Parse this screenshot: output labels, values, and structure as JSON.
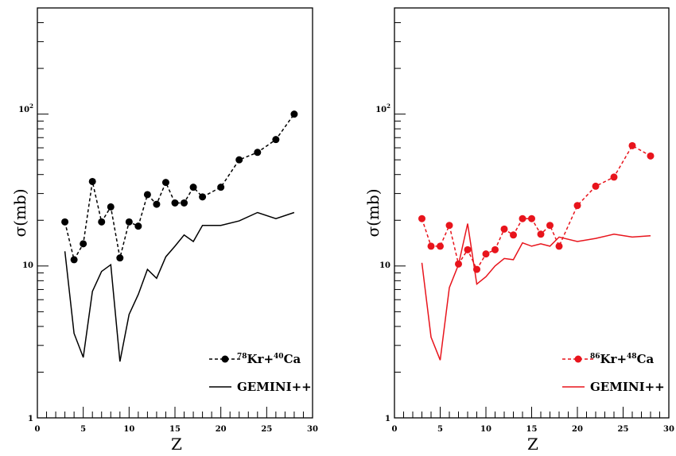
{
  "colors": {
    "black": "#000000",
    "red": "#e8141c",
    "frame": "#000000"
  },
  "chart_data": [
    {
      "type": "line",
      "title": "",
      "xlabel": "Z",
      "ylabel": "σ(mb)",
      "xlim": [
        0,
        30
      ],
      "ylim": [
        1,
        500
      ],
      "yscale": "log",
      "x_ticks": [
        "0",
        "5",
        "10",
        "15",
        "20",
        "25",
        "30"
      ],
      "y_ticks": [
        {
          "value": 1,
          "label": "1"
        },
        {
          "value": 10,
          "label": "10"
        },
        {
          "value": 100,
          "label": "10²"
        }
      ],
      "legend": {
        "position": "bottom-right"
      },
      "series": [
        {
          "name": "⁷⁸Kr+⁴⁰Ca",
          "label_parts": {
            "mass1": "78",
            "el1": "Kr+",
            "mass2": "40",
            "el2": "Ca"
          },
          "style": "dashed-markers",
          "color": "#000000",
          "points": [
            [
              3,
              19.5
            ],
            [
              4,
              11
            ],
            [
              5,
              14
            ],
            [
              6,
              36
            ],
            [
              7,
              19.5
            ],
            [
              8,
              24.5
            ],
            [
              9,
              11.3
            ],
            [
              10,
              19.5
            ],
            [
              11,
              18.3
            ],
            [
              12,
              29.5
            ],
            [
              13,
              25.5
            ],
            [
              14,
              35.5
            ],
            [
              15,
              26
            ],
            [
              16,
              26
            ],
            [
              17,
              33
            ],
            [
              18,
              28.5
            ],
            [
              20,
              33
            ],
            [
              22,
              50
            ],
            [
              24,
              56
            ],
            [
              26,
              68
            ],
            [
              28,
              100
            ]
          ]
        },
        {
          "name": "GEMINI++",
          "style": "solid",
          "color": "#000000",
          "points": [
            [
              3,
              12.5
            ],
            [
              4,
              3.6
            ],
            [
              5,
              2.5
            ],
            [
              6,
              6.8
            ],
            [
              7,
              9.2
            ],
            [
              8,
              10.2
            ],
            [
              9,
              2.35
            ],
            [
              10,
              4.8
            ],
            [
              11,
              6.5
            ],
            [
              12,
              9.5
            ],
            [
              13,
              8.3
            ],
            [
              14,
              11.5
            ],
            [
              15,
              13.5
            ],
            [
              16,
              16
            ],
            [
              17,
              14.5
            ],
            [
              18,
              18.5
            ],
            [
              20,
              18.5
            ],
            [
              22,
              19.8
            ],
            [
              24,
              22.5
            ],
            [
              26,
              20.5
            ],
            [
              28,
              22.5
            ]
          ]
        }
      ]
    },
    {
      "type": "line",
      "title": "",
      "xlabel": "Z",
      "ylabel": "σ(mb)",
      "xlim": [
        0,
        30
      ],
      "ylim": [
        1,
        500
      ],
      "yscale": "log",
      "x_ticks": [
        "0",
        "5",
        "10",
        "15",
        "20",
        "25",
        "30"
      ],
      "y_ticks": [
        {
          "value": 1,
          "label": "1"
        },
        {
          "value": 10,
          "label": "10"
        },
        {
          "value": 100,
          "label": "10²"
        }
      ],
      "legend": {
        "position": "bottom-right"
      },
      "series": [
        {
          "name": "⁸⁶Kr+⁴⁸Ca",
          "label_parts": {
            "mass1": "86",
            "el1": "Kr+",
            "mass2": "48",
            "el2": "Ca"
          },
          "style": "dashed-markers",
          "color": "#e8141c",
          "points": [
            [
              3,
              20.5
            ],
            [
              4,
              13.5
            ],
            [
              5,
              13.5
            ],
            [
              6,
              18.5
            ],
            [
              7,
              10.3
            ],
            [
              8,
              12.8
            ],
            [
              9,
              9.5
            ],
            [
              10,
              12
            ],
            [
              11,
              12.8
            ],
            [
              12,
              17.5
            ],
            [
              13,
              16
            ],
            [
              14,
              20.5
            ],
            [
              15,
              20.5
            ],
            [
              16,
              16.2
            ],
            [
              17,
              18.5
            ],
            [
              18,
              13.5
            ],
            [
              20,
              25
            ],
            [
              22,
              33.5
            ],
            [
              24,
              38.5
            ],
            [
              26,
              62
            ],
            [
              28,
              53
            ]
          ]
        },
        {
          "name": "GEMINI++",
          "style": "solid",
          "color": "#e8141c",
          "points": [
            [
              3,
              10.5
            ],
            [
              4,
              3.4
            ],
            [
              5,
              2.4
            ],
            [
              6,
              7.2
            ],
            [
              7,
              10.2
            ],
            [
              8,
              19
            ],
            [
              9,
              7.6
            ],
            [
              10,
              8.5
            ],
            [
              11,
              10
            ],
            [
              12,
              11.2
            ],
            [
              13,
              11
            ],
            [
              14,
              14.2
            ],
            [
              15,
              13.5
            ],
            [
              16,
              14
            ],
            [
              17,
              13.5
            ],
            [
              18,
              15.5
            ],
            [
              20,
              14.5
            ],
            [
              22,
              15.2
            ],
            [
              24,
              16.2
            ],
            [
              26,
              15.5
            ],
            [
              28,
              15.8
            ]
          ]
        }
      ]
    }
  ]
}
